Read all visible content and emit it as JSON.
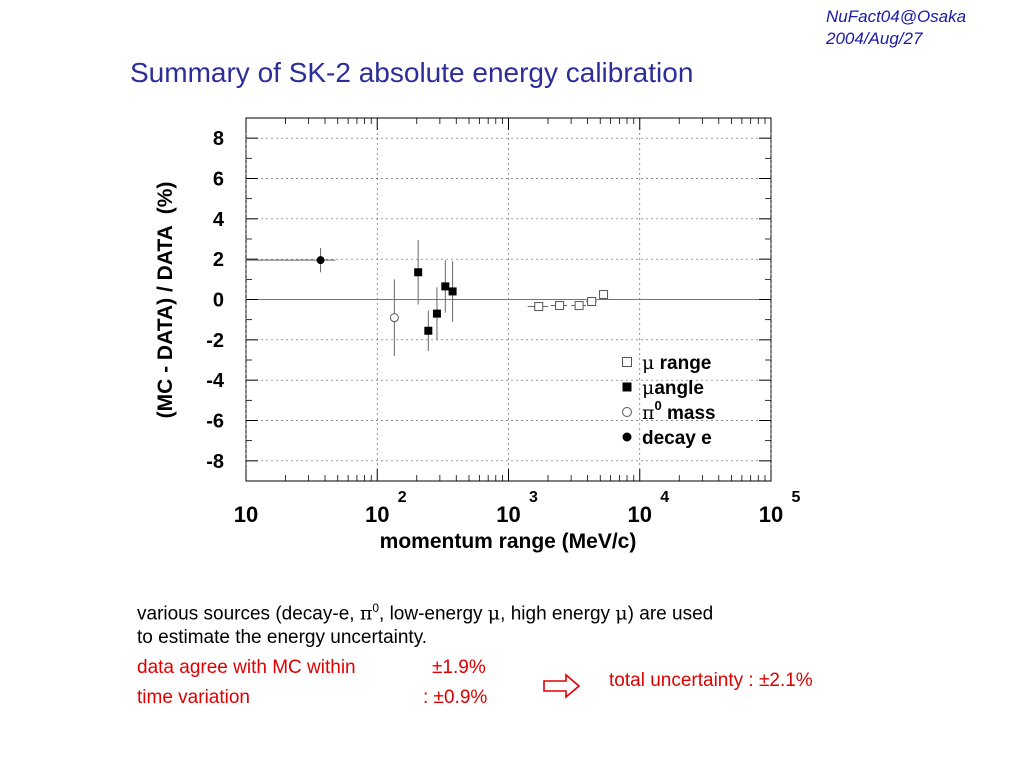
{
  "header": {
    "conference": "NuFact04@Osaka",
    "date": "2004/Aug/27",
    "title": "Summary of SK-2 absolute energy calibration"
  },
  "chart_data": {
    "type": "scatter",
    "title": "",
    "xlabel": "momentum range (MeV/c)",
    "ylabel": "(MC - DATA) / DATA  (%)",
    "xscale": "log",
    "xlim": [
      10,
      100000
    ],
    "ylim": [
      -9,
      9
    ],
    "grid": true,
    "legend_position": "lower-right",
    "x_ticks": [
      {
        "value": 10,
        "base": "10",
        "exp": ""
      },
      {
        "value": 100,
        "base": "10",
        "exp": "2"
      },
      {
        "value": 1000,
        "base": "10",
        "exp": "3"
      },
      {
        "value": 10000,
        "base": "10",
        "exp": "4"
      },
      {
        "value": 100000,
        "base": "10",
        "exp": "5"
      }
    ],
    "y_ticks": [
      8,
      6,
      4,
      2,
      0,
      -2,
      -4,
      -6,
      -8
    ],
    "series": [
      {
        "name": "μ range",
        "greek": "μ",
        "label": " range",
        "marker": "open-square",
        "points": [
          {
            "x": 1700,
            "y": -0.35,
            "xlo": 1400,
            "xhi": 2000,
            "err": 0.15
          },
          {
            "x": 2450,
            "y": -0.3,
            "xlo": 2100,
            "xhi": 2800,
            "err": 0.15
          },
          {
            "x": 3450,
            "y": -0.3,
            "xlo": 3000,
            "xhi": 3900,
            "err": 0.15
          },
          {
            "x": 4300,
            "y": -0.1,
            "xlo": 3900,
            "xhi": 4700,
            "err": 0.15
          },
          {
            "x": 5300,
            "y": 0.25,
            "xlo": 4900,
            "xhi": 5700,
            "err": 0.15
          }
        ]
      },
      {
        "name": "μ angle",
        "greek": "μ",
        "label": "angle",
        "marker": "filled-square",
        "points": [
          {
            "x": 205,
            "y": 1.35,
            "err": 1.6
          },
          {
            "x": 245,
            "y": -1.55,
            "err": 1.0
          },
          {
            "x": 285,
            "y": -0.7,
            "err": 1.3
          },
          {
            "x": 330,
            "y": 0.65,
            "err": 1.3
          },
          {
            "x": 375,
            "y": 0.4,
            "err": 1.5
          }
        ]
      },
      {
        "name": "π0 mass",
        "greek": "π",
        "sup": "0",
        "label": " mass",
        "marker": "open-circle",
        "points": [
          {
            "x": 135,
            "y": -0.9,
            "err": 1.9
          }
        ]
      },
      {
        "name": "decay e",
        "greek": "",
        "label": "decay e",
        "marker": "filled-circle",
        "points": [
          {
            "x": 37,
            "y": 1.95,
            "xlo": 10,
            "xhi": 48,
            "err": 0.6
          }
        ]
      }
    ]
  },
  "text": {
    "line1_a": "various sources (decay-e, ",
    "pi": "π",
    "pi_sup": "0",
    "line1_b": ", low-energy ",
    "mu1": "μ",
    "line1_c": ", high energy ",
    "mu2": "μ",
    "line1_d": ") are used",
    "line2": "to estimate the energy uncertainty.",
    "agree_label": "data agree with MC within",
    "agree_value": "±1.9%",
    "time_label": "time variation",
    "time_value": ": ±0.9%",
    "total": "total uncertainty : ±2.1%"
  },
  "colors": {
    "title": "#2d2d9a",
    "conference": "#1a1aa6",
    "highlight": "#e00000"
  }
}
